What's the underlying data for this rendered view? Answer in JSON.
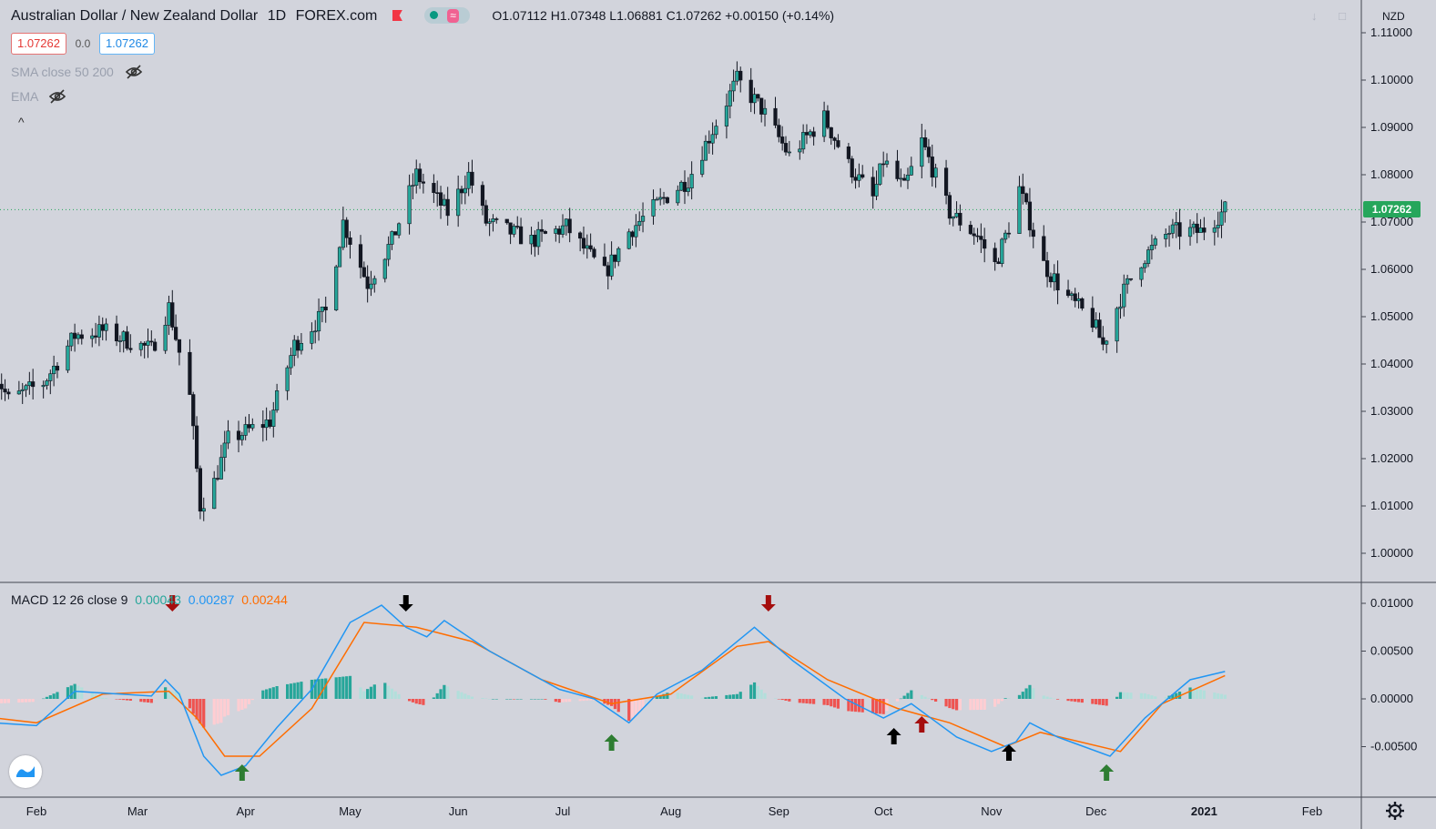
{
  "header": {
    "symbol": "Australian Dollar / New Zealand Dollar",
    "interval": "1D",
    "exchange": "FOREX.com",
    "ohlc": "O1.07112 H1.07348 L1.06881 C1.07262 +0.00150 (+0.14%)",
    "sell_price": "1.07262",
    "spread": "0.0",
    "buy_price": "1.07262",
    "wave_glyph": "≈"
  },
  "indicators": [
    {
      "label": "SMA close 50 200"
    },
    {
      "label": "EMA"
    }
  ],
  "collapse_glyph": "^",
  "price_unit": "NZD",
  "last_price_label": "1.07262",
  "macd_legend": {
    "title": "MACD 12 26 close 9",
    "histogram": "0.00043",
    "macd": "0.00287",
    "signal": "0.00244"
  },
  "colors": {
    "background": "#d2d4dc",
    "candle_up": "#26a69a",
    "candle_down": "#131722",
    "macd_line": "#2196f3",
    "signal_line": "#ff6d00",
    "hist_pos_strong": "#26a69a",
    "hist_pos_weak": "#b2dfdb",
    "hist_neg_strong": "#ef5350",
    "hist_neg_weak": "#ffcdd2",
    "arrow_red": "#a50e0e",
    "arrow_green": "#2e7d32",
    "arrow_black": "#000000",
    "last_price": "#26a65b"
  },
  "icons": [
    "flag-icon",
    "market-status-icon",
    "hidden-eye-icon",
    "collapse-icon",
    "tradingview-logo-icon",
    "settings-gear-icon",
    "scroll-down-icon",
    "fullscreen-icon"
  ],
  "chart_data": [
    {
      "type": "candlestick",
      "title": "Australian Dollar / New Zealand Dollar",
      "ylim": [
        0.995,
        1.113
      ],
      "yticks": [
        "1.00000",
        "1.01000",
        "1.02000",
        "1.03000",
        "1.04000",
        "1.05000",
        "1.06000",
        "1.07000",
        "1.08000",
        "1.09000",
        "1.10000",
        "1.11000"
      ],
      "xticks": [
        "Feb",
        "Mar",
        "Apr",
        "May",
        "Jun",
        "Jul",
        "Aug",
        "Sep",
        "Oct",
        "Nov",
        "Dec",
        "2021",
        "Feb"
      ],
      "grid": false,
      "close_series_approx": [
        {
          "date": "2020-01-20",
          "close": 1.0384
        },
        {
          "date": "2020-01-24",
          "close": 1.0324
        },
        {
          "date": "2020-02-03",
          "close": 1.036
        },
        {
          "date": "2020-02-12",
          "close": 1.046
        },
        {
          "date": "2020-02-20",
          "close": 1.047
        },
        {
          "date": "2020-03-05",
          "close": 1.043
        },
        {
          "date": "2020-03-10",
          "close": 1.052
        },
        {
          "date": "2020-03-16",
          "close": 1.033
        },
        {
          "date": "2020-03-19",
          "close": 1.01
        },
        {
          "date": "2020-03-23",
          "close": 1.015
        },
        {
          "date": "2020-03-27",
          "close": 1.024
        },
        {
          "date": "2020-04-08",
          "close": 1.028
        },
        {
          "date": "2020-04-15",
          "close": 1.044
        },
        {
          "date": "2020-04-24",
          "close": 1.051
        },
        {
          "date": "2020-04-29",
          "close": 1.07
        },
        {
          "date": "2020-05-06",
          "close": 1.057
        },
        {
          "date": "2020-05-13",
          "close": 1.066
        },
        {
          "date": "2020-05-20",
          "close": 1.08
        },
        {
          "date": "2020-05-29",
          "close": 1.072
        },
        {
          "date": "2020-06-04",
          "close": 1.08
        },
        {
          "date": "2020-06-09",
          "close": 1.07
        },
        {
          "date": "2020-06-22",
          "close": 1.066
        },
        {
          "date": "2020-07-02",
          "close": 1.069
        },
        {
          "date": "2020-07-13",
          "close": 1.059
        },
        {
          "date": "2020-07-20",
          "close": 1.068
        },
        {
          "date": "2020-07-30",
          "close": 1.075
        },
        {
          "date": "2020-08-06",
          "close": 1.079
        },
        {
          "date": "2020-08-14",
          "close": 1.091
        },
        {
          "date": "2020-08-20",
          "close": 1.1
        },
        {
          "date": "2020-08-27",
          "close": 1.094
        },
        {
          "date": "2020-09-04",
          "close": 1.084
        },
        {
          "date": "2020-09-14",
          "close": 1.092
        },
        {
          "date": "2020-09-21",
          "close": 1.082
        },
        {
          "date": "2020-09-28",
          "close": 1.075
        },
        {
          "date": "2020-10-01",
          "close": 1.083
        },
        {
          "date": "2020-10-07",
          "close": 1.077
        },
        {
          "date": "2020-10-12",
          "close": 1.087
        },
        {
          "date": "2020-10-20",
          "close": 1.072
        },
        {
          "date": "2020-10-28",
          "close": 1.067
        },
        {
          "date": "2020-11-02",
          "close": 1.061
        },
        {
          "date": "2020-11-06",
          "close": 1.069
        },
        {
          "date": "2020-11-09",
          "close": 1.077
        },
        {
          "date": "2020-11-16",
          "close": 1.061
        },
        {
          "date": "2020-11-23",
          "close": 1.054
        },
        {
          "date": "2020-11-30",
          "close": 1.049
        },
        {
          "date": "2020-12-03",
          "close": 1.044
        },
        {
          "date": "2020-12-08",
          "close": 1.054
        },
        {
          "date": "2020-12-14",
          "close": 1.062
        },
        {
          "date": "2020-12-22",
          "close": 1.068
        },
        {
          "date": "2020-12-31",
          "close": 1.068
        },
        {
          "date": "2021-01-07",
          "close": 1.0726
        }
      ],
      "last_close": 1.07262
    },
    {
      "type": "line",
      "title": "MACD 12 26 close 9",
      "ylim": [
        -0.0085,
        0.0115
      ],
      "yticks": [
        "0.01000",
        "0.00500",
        "0.00000",
        "-0.00500"
      ],
      "series": [
        {
          "name": "MACD",
          "points": [
            {
              "date": "2020-01-20",
              "value": -0.0025
            },
            {
              "date": "2020-02-01",
              "value": -0.0028
            },
            {
              "date": "2020-02-12",
              "value": 0.0008
            },
            {
              "date": "2020-03-05",
              "value": 0.0003
            },
            {
              "date": "2020-03-09",
              "value": 0.002
            },
            {
              "date": "2020-03-13",
              "value": 0.0005
            },
            {
              "date": "2020-03-20",
              "value": -0.006
            },
            {
              "date": "2020-03-25",
              "value": -0.008
            },
            {
              "date": "2020-04-01",
              "value": -0.007
            },
            {
              "date": "2020-04-10",
              "value": -0.003
            },
            {
              "date": "2020-04-20",
              "value": 0.001
            },
            {
              "date": "2020-05-01",
              "value": 0.008
            },
            {
              "date": "2020-05-10",
              "value": 0.0098
            },
            {
              "date": "2020-05-17",
              "value": 0.0075
            },
            {
              "date": "2020-05-23",
              "value": 0.0065
            },
            {
              "date": "2020-05-28",
              "value": 0.0082
            },
            {
              "date": "2020-06-10",
              "value": 0.005
            },
            {
              "date": "2020-06-30",
              "value": 0.001
            },
            {
              "date": "2020-07-10",
              "value": 0.0
            },
            {
              "date": "2020-07-20",
              "value": -0.0025
            },
            {
              "date": "2020-07-28",
              "value": 0.0005
            },
            {
              "date": "2020-08-10",
              "value": 0.003
            },
            {
              "date": "2020-08-25",
              "value": 0.0075
            },
            {
              "date": "2020-09-05",
              "value": 0.004
            },
            {
              "date": "2020-09-20",
              "value": 0.0
            },
            {
              "date": "2020-10-01",
              "value": -0.002
            },
            {
              "date": "2020-10-09",
              "value": -0.0005
            },
            {
              "date": "2020-10-22",
              "value": -0.004
            },
            {
              "date": "2020-11-01",
              "value": -0.0055
            },
            {
              "date": "2020-11-08",
              "value": -0.0045
            },
            {
              "date": "2020-11-12",
              "value": -0.0025
            },
            {
              "date": "2020-11-20",
              "value": -0.004
            },
            {
              "date": "2020-12-05",
              "value": -0.006
            },
            {
              "date": "2020-12-15",
              "value": -0.002
            },
            {
              "date": "2020-12-28",
              "value": 0.002
            },
            {
              "date": "2021-01-07",
              "value": 0.00287
            }
          ]
        },
        {
          "name": "Signal",
          "points": [
            {
              "date": "2020-01-20",
              "value": -0.002
            },
            {
              "date": "2020-02-01",
              "value": -0.0025
            },
            {
              "date": "2020-02-20",
              "value": 0.0005
            },
            {
              "date": "2020-03-10",
              "value": 0.0008
            },
            {
              "date": "2020-03-18",
              "value": -0.002
            },
            {
              "date": "2020-03-26",
              "value": -0.006
            },
            {
              "date": "2020-04-05",
              "value": -0.006
            },
            {
              "date": "2020-04-20",
              "value": -0.001
            },
            {
              "date": "2020-05-05",
              "value": 0.008
            },
            {
              "date": "2020-05-20",
              "value": 0.0075
            },
            {
              "date": "2020-06-05",
              "value": 0.006
            },
            {
              "date": "2020-06-25",
              "value": 0.002
            },
            {
              "date": "2020-07-15",
              "value": -0.0005
            },
            {
              "date": "2020-08-01",
              "value": 0.0005
            },
            {
              "date": "2020-08-20",
              "value": 0.0055
            },
            {
              "date": "2020-08-29",
              "value": 0.006
            },
            {
              "date": "2020-09-15",
              "value": 0.002
            },
            {
              "date": "2020-10-05",
              "value": -0.001
            },
            {
              "date": "2020-10-20",
              "value": -0.0025
            },
            {
              "date": "2020-11-05",
              "value": -0.005
            },
            {
              "date": "2020-11-15",
              "value": -0.0035
            },
            {
              "date": "2020-12-08",
              "value": -0.0055
            },
            {
              "date": "2020-12-20",
              "value": -0.0005
            },
            {
              "date": "2021-01-07",
              "value": 0.00244
            }
          ]
        }
      ],
      "histogram_latest": 0.00043,
      "signal_arrows": [
        {
          "date": "2020-03-11",
          "direction": "down",
          "color": "red"
        },
        {
          "date": "2020-03-31",
          "direction": "up",
          "color": "green"
        },
        {
          "date": "2020-05-17",
          "direction": "down",
          "color": "black"
        },
        {
          "date": "2020-07-15",
          "direction": "up",
          "color": "green"
        },
        {
          "date": "2020-08-29",
          "direction": "down",
          "color": "red"
        },
        {
          "date": "2020-10-04",
          "direction": "up",
          "color": "black"
        },
        {
          "date": "2020-10-12",
          "direction": "up",
          "color": "red"
        },
        {
          "date": "2020-11-06",
          "direction": "up",
          "color": "black"
        },
        {
          "date": "2020-12-04",
          "direction": "up",
          "color": "green"
        }
      ]
    }
  ]
}
